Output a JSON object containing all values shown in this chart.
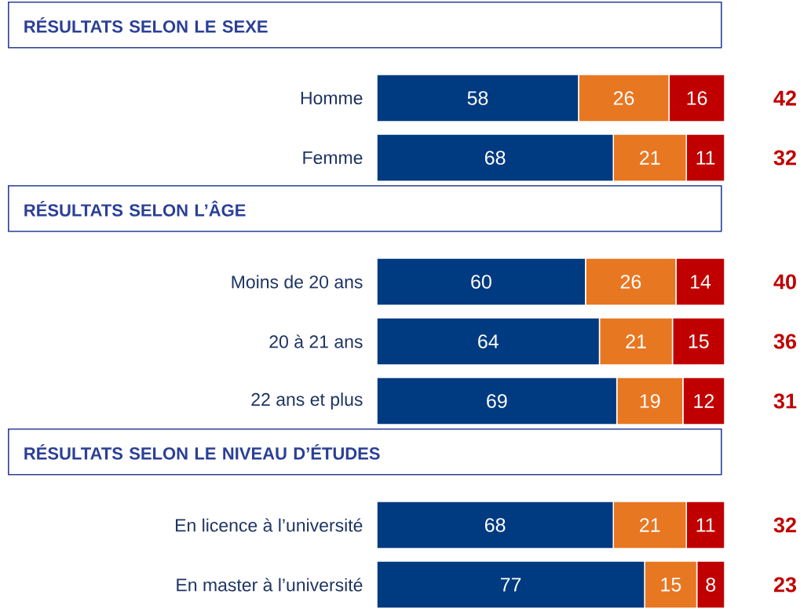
{
  "chart_data": [
    {
      "type": "bar",
      "orientation": "horizontal",
      "stacked": true,
      "data_labels": true,
      "title": "RÉSULTATS SELON LE SEXE",
      "categories": [
        "Homme",
        "Femme"
      ],
      "series": [
        {
          "color": "#003a80",
          "values": [
            58,
            68
          ]
        },
        {
          "color": "#e87722",
          "values": [
            26,
            21
          ]
        },
        {
          "color": "#c00000",
          "values": [
            16,
            11
          ]
        }
      ],
      "annotations": [
        "42",
        "32"
      ]
    },
    {
      "type": "bar",
      "orientation": "horizontal",
      "stacked": true,
      "data_labels": true,
      "title": "RÉSULTATS SELON L’ÂGE",
      "categories": [
        "Moins de 20 ans",
        "20 à 21 ans",
        "22 ans et plus"
      ],
      "series": [
        {
          "color": "#003a80",
          "values": [
            60,
            64,
            69
          ]
        },
        {
          "color": "#e87722",
          "values": [
            26,
            21,
            19
          ]
        },
        {
          "color": "#c00000",
          "values": [
            14,
            15,
            12
          ]
        }
      ],
      "annotations": [
        "40",
        "36",
        "31"
      ]
    },
    {
      "type": "bar",
      "orientation": "horizontal",
      "stacked": true,
      "data_labels": true,
      "title": "RÉSULTATS SELON LE NIVEAU D’ÉTUDES",
      "categories": [
        "En licence à l’université",
        "En master à l’université"
      ],
      "series": [
        {
          "color": "#003a80",
          "values": [
            68,
            77
          ]
        },
        {
          "color": "#e87722",
          "values": [
            21,
            15
          ]
        },
        {
          "color": "#c00000",
          "values": [
            11,
            8
          ]
        }
      ],
      "annotations": [
        "32",
        "23"
      ]
    }
  ]
}
